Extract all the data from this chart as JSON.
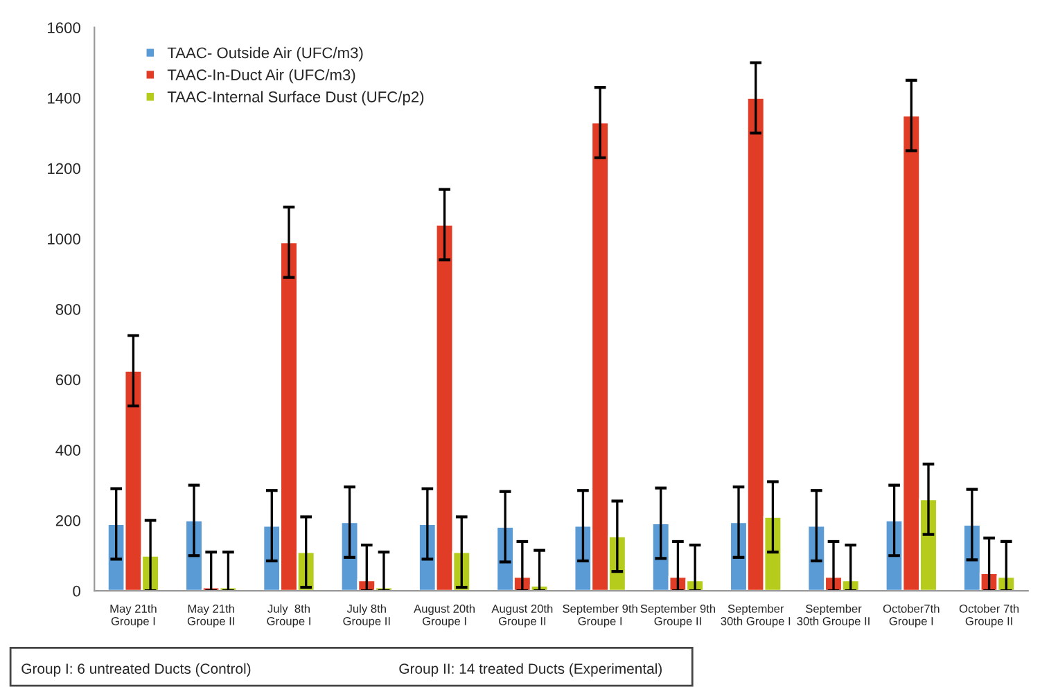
{
  "chart_data": {
    "type": "bar",
    "categories": [
      "May 21th\nGroupe I",
      "May 21th\nGroupe II",
      "July  8th\nGroupe I",
      "July 8th\nGroupe II",
      "August 20th\nGroupe I",
      "August 20th\nGroupe II",
      "September 9th\nGroupe I",
      "September 9th\nGroupe II",
      "September\n30th Groupe I",
      "September\n30th Groupe II",
      "October7th\nGroupe I",
      "October 7th\nGroupe II"
    ],
    "series": [
      {
        "name": "TAAC- Outside Air (UFC/m3)",
        "color": "#5b9bd5",
        "values": [
          190,
          200,
          185,
          195,
          190,
          182,
          185,
          192,
          195,
          185,
          200,
          188
        ],
        "errors": [
          100,
          100,
          100,
          100,
          100,
          100,
          100,
          100,
          100,
          100,
          100,
          100
        ]
      },
      {
        "name": "TAAC-In-Duct Air (UFC/m3)",
        "color": "#e03c26",
        "values": [
          625,
          10,
          990,
          30,
          1040,
          40,
          1330,
          40,
          1400,
          40,
          1350,
          50
        ],
        "errors": [
          100,
          [
            0,
            110
          ],
          100,
          [
            0,
            130
          ],
          100,
          [
            0,
            140
          ],
          100,
          [
            0,
            140
          ],
          100,
          [
            0,
            140
          ],
          100,
          [
            0,
            150
          ]
        ]
      },
      {
        "name": "TAAC-Internal Surface Dust (UFC/p2)",
        "color": "#b5cc1c",
        "values": [
          100,
          10,
          110,
          10,
          110,
          15,
          155,
          30,
          210,
          30,
          260,
          40
        ],
        "errors": [
          100,
          [
            0,
            110
          ],
          100,
          [
            0,
            110
          ],
          100,
          [
            0,
            115
          ],
          100,
          [
            0,
            130
          ],
          100,
          [
            0,
            130
          ],
          100,
          [
            0,
            140
          ]
        ]
      }
    ],
    "ylim": [
      0,
      1600
    ],
    "yticks": [
      0,
      200,
      400,
      600,
      800,
      1000,
      1200,
      1400,
      1600
    ],
    "legend": "top left",
    "grid": false,
    "annotations": [
      "Group I: 6 untreated Ducts (Control)",
      "Group II: 14 treated Ducts (Experimental)"
    ]
  }
}
